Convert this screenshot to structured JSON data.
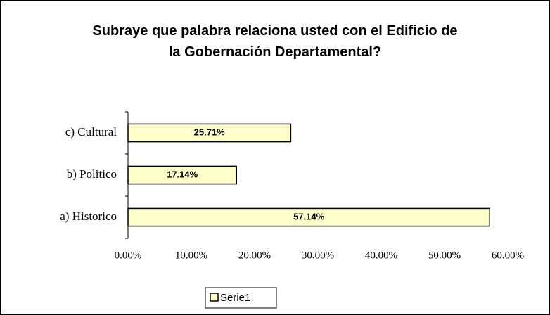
{
  "chart_data": {
    "type": "bar",
    "orientation": "horizontal",
    "title": "Subraye que palabra relaciona usted con el Edificio de la Gobernación Departamental?",
    "categories": [
      "a) Historico",
      "b) Politico",
      "c) Cultural"
    ],
    "series": [
      {
        "name": "Serie1",
        "color": "#ffffcc",
        "values": [
          57.14,
          17.14,
          25.71
        ],
        "value_labels": [
          "57.14%",
          "17.14%",
          "25.71%"
        ]
      }
    ],
    "xlim": [
      0,
      60
    ],
    "xticks": [
      {
        "value": 0,
        "label": "0.00%"
      },
      {
        "value": 10,
        "label": "10.00%"
      },
      {
        "value": 20,
        "label": "20.00%"
      },
      {
        "value": 30,
        "label": "30.00%"
      },
      {
        "value": 40,
        "label": "40.00%"
      },
      {
        "value": 50,
        "label": "50.00%"
      },
      {
        "value": 60,
        "label": "60.00%"
      }
    ],
    "grid": false,
    "legend": "bottom"
  }
}
